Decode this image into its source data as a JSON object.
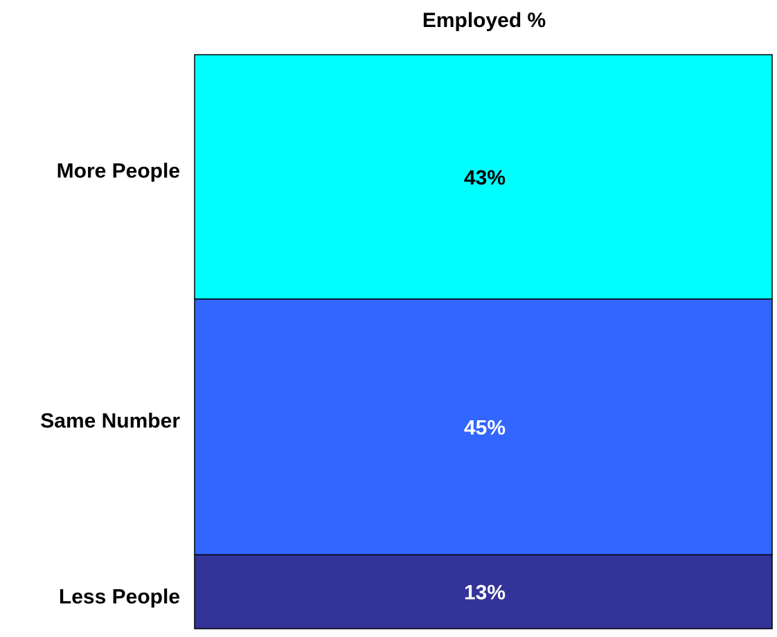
{
  "chart_data": {
    "type": "bar",
    "stacked": true,
    "title": "Employed %",
    "xlabel": "",
    "ylabel": "",
    "categories": [
      "Employed %"
    ],
    "series": [
      {
        "name": "More People",
        "values": [
          43
        ],
        "color": "#00FFFF",
        "label_color": "#000000"
      },
      {
        "name": "Same Number",
        "values": [
          45
        ],
        "color": "#3366FF",
        "label_color": "#FFFFFF"
      },
      {
        "name": "Less People",
        "values": [
          13
        ],
        "color": "#333399",
        "label_color": "#FFFFFF"
      }
    ],
    "data_labels": [
      "43%",
      "45%",
      "13%"
    ],
    "grid": false,
    "legend": "left"
  }
}
